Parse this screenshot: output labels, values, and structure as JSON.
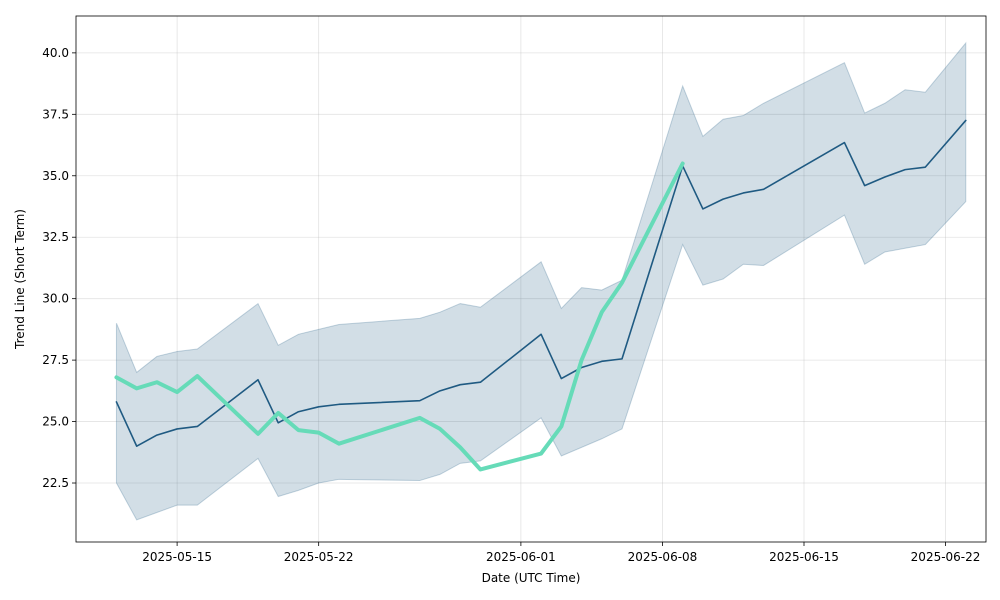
{
  "chart_data": {
    "type": "line",
    "title": "",
    "xlabel": "Date (UTC Time)",
    "ylabel": "Trend Line (Short Term)",
    "xlim": [
      "2025-05-10",
      "2025-06-24"
    ],
    "ylim": [
      20.1,
      41.5
    ],
    "xticks": [
      "2025-05-15",
      "2025-05-22",
      "2025-06-01",
      "2025-06-08",
      "2025-06-15",
      "2025-06-22"
    ],
    "yticks": [
      22.5,
      25.0,
      27.5,
      30.0,
      32.5,
      35.0,
      37.5,
      40.0
    ],
    "grid": true,
    "legend": "none",
    "band": {
      "color": "#1f5a82",
      "opacity": 0.2,
      "x": [
        "2025-05-12",
        "2025-05-13",
        "2025-05-14",
        "2025-05-15",
        "2025-05-16",
        "2025-05-19",
        "2025-05-20",
        "2025-05-21",
        "2025-05-22",
        "2025-05-23",
        "2025-05-27",
        "2025-05-28",
        "2025-05-29",
        "2025-05-30",
        "2025-06-02",
        "2025-06-03",
        "2025-06-04",
        "2025-06-05",
        "2025-06-06",
        "2025-06-09",
        "2025-06-10",
        "2025-06-11",
        "2025-06-12",
        "2025-06-13",
        "2025-06-17",
        "2025-06-18",
        "2025-06-19",
        "2025-06-20",
        "2025-06-21",
        "2025-06-23"
      ],
      "upper": [
        29.0,
        27.0,
        27.65,
        27.85,
        27.95,
        29.8,
        28.1,
        28.55,
        28.75,
        28.95,
        29.2,
        29.45,
        29.8,
        29.65,
        31.5,
        29.6,
        30.45,
        30.35,
        30.75,
        38.65,
        36.6,
        37.3,
        37.45,
        37.95,
        39.6,
        37.55,
        37.95,
        38.5,
        38.4,
        40.4
      ],
      "lower": [
        22.5,
        21.0,
        21.3,
        21.6,
        21.6,
        23.5,
        21.95,
        22.2,
        22.5,
        22.65,
        22.6,
        22.85,
        23.3,
        23.4,
        25.15,
        23.6,
        23.95,
        24.3,
        24.7,
        32.2,
        30.55,
        30.8,
        31.4,
        31.35,
        33.4,
        31.4,
        31.9,
        32.05,
        32.2,
        33.95
      ]
    },
    "series": [
      {
        "color": "#1f5a82",
        "width": 1.6,
        "x": [
          "2025-05-12",
          "2025-05-13",
          "2025-05-14",
          "2025-05-15",
          "2025-05-16",
          "2025-05-19",
          "2025-05-20",
          "2025-05-21",
          "2025-05-22",
          "2025-05-23",
          "2025-05-27",
          "2025-05-28",
          "2025-05-29",
          "2025-05-30",
          "2025-06-02",
          "2025-06-03",
          "2025-06-04",
          "2025-06-05",
          "2025-06-06",
          "2025-06-09",
          "2025-06-10",
          "2025-06-11",
          "2025-06-12",
          "2025-06-13",
          "2025-06-17",
          "2025-06-18",
          "2025-06-19",
          "2025-06-20",
          "2025-06-21",
          "2025-06-23"
        ],
        "values": [
          25.8,
          24.0,
          24.45,
          24.7,
          24.8,
          26.7,
          24.95,
          25.4,
          25.6,
          25.7,
          25.85,
          26.25,
          26.5,
          26.6,
          28.55,
          26.75,
          27.2,
          27.45,
          27.55,
          35.4,
          33.65,
          34.05,
          34.3,
          34.45,
          36.35,
          34.6,
          34.95,
          35.25,
          35.35,
          37.25
        ]
      },
      {
        "color": "#66dbb8",
        "width": 4,
        "x": [
          "2025-05-12",
          "2025-05-13",
          "2025-05-14",
          "2025-05-15",
          "2025-05-16",
          "2025-05-19",
          "2025-05-20",
          "2025-05-21",
          "2025-05-22",
          "2025-05-23",
          "2025-05-27",
          "2025-05-28",
          "2025-05-29",
          "2025-05-30",
          "2025-06-02",
          "2025-06-03",
          "2025-06-04",
          "2025-06-05",
          "2025-06-06",
          "2025-06-09"
        ],
        "values": [
          26.8,
          26.35,
          26.6,
          26.2,
          26.85,
          24.5,
          25.35,
          24.65,
          24.55,
          24.1,
          25.15,
          24.7,
          23.95,
          23.05,
          23.7,
          24.8,
          27.5,
          29.45,
          30.65,
          35.5
        ]
      }
    ]
  }
}
